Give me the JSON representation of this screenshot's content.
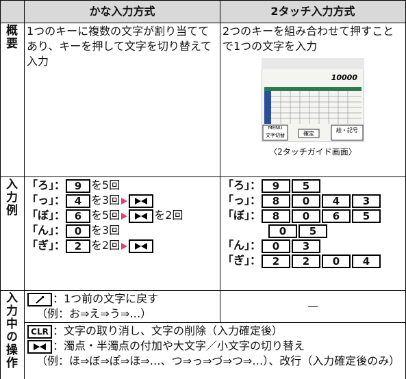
{
  "header": {
    "kana": "かな入力方式",
    "two_touch": "2タッチ入力方式"
  },
  "rows": [
    {
      "label": "概要",
      "kana": "1つのキーに複数の文字が割り当ててあり、キーを押して文字を切り替えて入力",
      "two_touch": "2つのキーを組み合わせて押すことで1つの文字を入力",
      "screen": {
        "amount": "10000",
        "keys": [
          "MENU",
          "文字切替",
          "確定",
          "絵・記号"
        ]
      },
      "caption": "〈2タッチガイド画面〉"
    },
    {
      "label": "入力例",
      "kana": [
        {
          "char": "「ろ」：",
          "key": "9",
          "text": "を5回"
        },
        {
          "char": "「っ」：",
          "key": "4",
          "text": "を3回"
        },
        {
          "char": "「ぼ」：",
          "key": "6",
          "text": "を5回",
          "after": "を2回"
        },
        {
          "char": "「ん」：",
          "key": "0",
          "text": "を3回"
        },
        {
          "char": "「ぎ」：",
          "key": "2",
          "text": "を2回"
        }
      ],
      "two_touch": [
        {
          "char": "「ろ」：",
          "keys": [
            "9",
            "5"
          ]
        },
        {
          "char": "「っ」：",
          "keys": [
            "8",
            "0",
            "4",
            "3"
          ]
        },
        {
          "char": "「ぼ」：",
          "keys": [
            "8",
            "0",
            "6",
            "5",
            "0",
            "5"
          ]
        },
        {
          "char": "「ん」：",
          "keys": [
            "0",
            "3"
          ]
        },
        {
          "char": "「ぎ」：",
          "keys": [
            "2",
            "2",
            "0",
            "4"
          ]
        }
      ]
    },
    {
      "label": "入力中の操作",
      "back": {
        "text": "：1つ前の文字に戻す",
        "example": "（例：お⇒え⇒う⇒…）"
      },
      "two_touch": "—",
      "clr": {
        "key": "CLR",
        "text": "：文字の取り消し、文字の削除（入力確定後）"
      },
      "star": {
        "text": "：濁点・半濁点の付加や大文字／小文字の切り替え",
        "example": "（例：ほ⇒ぼ⇒ぽ⇒ほ⇒…、つ⇒っ⇒づ⇒つ⇒…）、改行（入力確定後のみ）"
      }
    }
  ]
}
